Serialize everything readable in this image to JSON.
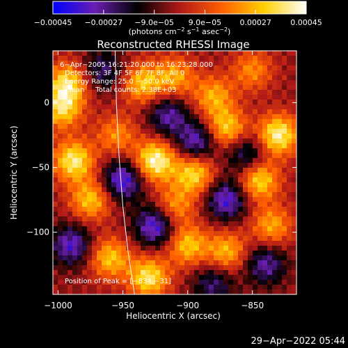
{
  "chart_data": {
    "type": "heatmap",
    "title": "Reconstructed RHESSI Image",
    "xlabel": "Heliocentric X (arcsec)",
    "ylabel": "Heliocentric Y (arcsec)",
    "xlim": [
      -1004,
      -816
    ],
    "ylim": [
      -148,
      40
    ],
    "x_ticks": [
      -1000,
      -950,
      -900,
      -850
    ],
    "x_tick_labels": [
      "−1000",
      "−950",
      "−900",
      "−850"
    ],
    "y_ticks": [
      0,
      -50,
      -100
    ],
    "y_tick_labels": [
      "0",
      "−50",
      "−100"
    ],
    "colorbar": {
      "min": -0.00045,
      "max": 0.00045,
      "ticks": [
        -0.00045,
        -0.00027,
        -9e-05,
        9e-05,
        0.00027,
        0.00045
      ],
      "tick_labels": [
        "−0.00045",
        "−0.00027",
        "−9.0e−05",
        "9.0e−05",
        "0.00027",
        "0.00045"
      ],
      "label_prefix": "(photons cm",
      "label_exp1": "−2",
      "label_mid": " s",
      "label_exp2": "−1",
      "label_end": " asec",
      "label_exp3": "−2",
      "label_close": ")",
      "colors": [
        "#0000ff",
        "#6a1fb0",
        "#000000",
        "#b01818",
        "#ff6000",
        "#ffd000",
        "#ffffff"
      ]
    },
    "annotations": [
      "6−Apr−2005 16:21:20.000 to 16:23:28.000",
      "Detectors: 3F 4F 5F 6F 7F 8F, All 0",
      "Energy Range: 25.0 − 50.0 keV",
      "Clean     Total counts: 2.38E+03"
    ],
    "peak_label": "Position of Peak = [−834,−31]",
    "grid": false,
    "limb_line": [
      [
        -956,
        40
      ],
      [
        -955,
        0
      ],
      [
        -953,
        -40
      ],
      [
        -950,
        -80
      ],
      [
        -946,
        -115
      ],
      [
        -941,
        -148
      ]
    ],
    "bright_regions": [
      {
        "x": -925,
        "y": -45,
        "intensity": 1.0
      },
      {
        "x": -993,
        "y": 15,
        "intensity": 0.8
      },
      {
        "x": -988,
        "y": -45,
        "intensity": 0.9
      },
      {
        "x": -895,
        "y": -55,
        "intensity": 0.8
      },
      {
        "x": -830,
        "y": -25,
        "intensity": 0.95
      },
      {
        "x": -870,
        "y": -20,
        "intensity": 0.75
      },
      {
        "x": -975,
        "y": -75,
        "intensity": 0.7
      },
      {
        "x": -935,
        "y": 15,
        "intensity": 0.7
      },
      {
        "x": -910,
        "y": 20,
        "intensity": 0.6
      },
      {
        "x": -845,
        "y": -60,
        "intensity": 0.8
      },
      {
        "x": -930,
        "y": -135,
        "intensity": 0.85
      },
      {
        "x": -900,
        "y": -110,
        "intensity": 0.7
      },
      {
        "x": -960,
        "y": -120,
        "intensity": 0.7
      },
      {
        "x": -870,
        "y": -115,
        "intensity": 0.65
      },
      {
        "x": -880,
        "y": 5,
        "intensity": 0.6
      },
      {
        "x": -997,
        "y": -5,
        "intensity": 0.75
      },
      {
        "x": -835,
        "y": -95,
        "intensity": 0.6
      },
      {
        "x": -955,
        "y": -25,
        "intensity": 0.5
      },
      {
        "x": -910,
        "y": -80,
        "intensity": 0.55
      },
      {
        "x": -850,
        "y": 25,
        "intensity": 0.5
      }
    ],
    "dark_regions": [
      {
        "x": -950,
        "y": -60,
        "intensity": -0.8
      },
      {
        "x": -893,
        "y": -30,
        "intensity": -0.7
      },
      {
        "x": -925,
        "y": -95,
        "intensity": -0.8
      },
      {
        "x": -870,
        "y": -75,
        "intensity": -0.75
      },
      {
        "x": -990,
        "y": -110,
        "intensity": -0.7
      },
      {
        "x": -915,
        "y": -10,
        "intensity": -0.6
      },
      {
        "x": -840,
        "y": -125,
        "intensity": -0.6
      },
      {
        "x": -965,
        "y": 25,
        "intensity": -0.5
      },
      {
        "x": -855,
        "y": -40,
        "intensity": -0.55
      },
      {
        "x": -880,
        "y": -140,
        "intensity": -0.5
      }
    ]
  },
  "footer": {
    "timestamp": "29−Apr−2022 05:44"
  }
}
